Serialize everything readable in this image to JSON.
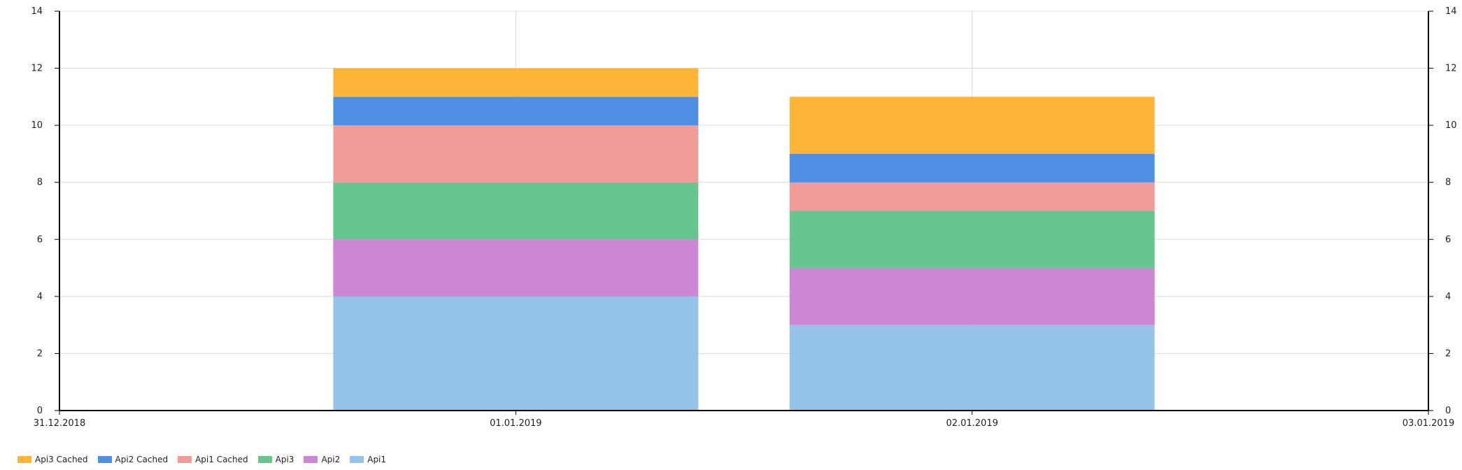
{
  "chart_data": {
    "type": "bar",
    "stacked": true,
    "x_ticks": [
      "31.12.2018",
      "01.01.2019",
      "02.01.2019",
      "03.01.2019"
    ],
    "categories": [
      "01.01.2019",
      "02.01.2019"
    ],
    "series": [
      {
        "name": "Api1",
        "color": "#95c3ea",
        "values": [
          4,
          3
        ]
      },
      {
        "name": "Api2",
        "color": "#cd86d4",
        "values": [
          2,
          2
        ]
      },
      {
        "name": "Api3",
        "color": "#67c58f",
        "values": [
          2,
          2
        ]
      },
      {
        "name": "Api1 Cached",
        "color": "#f19c98",
        "values": [
          2,
          1
        ]
      },
      {
        "name": "Api2 Cached",
        "color": "#4f8fe4",
        "values": [
          1,
          1
        ]
      },
      {
        "name": "Api3 Cached",
        "color": "#feb437",
        "values": [
          1,
          2
        ]
      }
    ],
    "legend_order": [
      "Api3 Cached",
      "Api2 Cached",
      "Api1 Cached",
      "Api3",
      "Api2",
      "Api1"
    ],
    "ylim": [
      0,
      14
    ],
    "y_ticks": [
      0,
      2,
      4,
      6,
      8,
      10,
      12,
      14
    ],
    "grid": true,
    "legend_position": "bottom-left",
    "title": "",
    "xlabel": "",
    "ylabel": ""
  }
}
